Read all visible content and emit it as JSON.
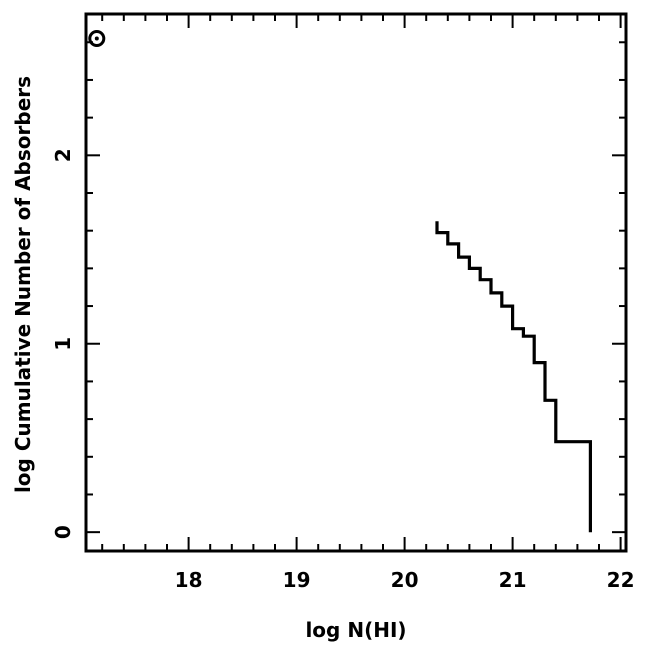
{
  "chart_data": {
    "type": "line",
    "step": true,
    "xlabel": "log N(HI)",
    "ylabel": "log Cumulative Number of Absorbers",
    "xlim": [
      17.05,
      22.05
    ],
    "ylim": [
      -0.1,
      2.75
    ],
    "x_ticks": [
      18,
      19,
      20,
      21,
      22
    ],
    "y_ticks": [
      0,
      1,
      2
    ],
    "series": [
      {
        "x": [
          20.3,
          20.3,
          20.4,
          20.4,
          20.5,
          20.5,
          20.6,
          20.6,
          20.7,
          20.7,
          20.8,
          20.8,
          20.9,
          20.9,
          21.0,
          21.0,
          21.1,
          21.1,
          21.2,
          21.2,
          21.3,
          21.3,
          21.4,
          21.4,
          21.72,
          21.72
        ],
        "y": [
          1.65,
          1.59,
          1.59,
          1.53,
          1.53,
          1.46,
          1.46,
          1.4,
          1.4,
          1.34,
          1.34,
          1.27,
          1.27,
          1.2,
          1.2,
          1.08,
          1.08,
          1.04,
          1.04,
          0.9,
          0.9,
          0.7,
          0.7,
          0.48,
          0.48,
          0.0
        ]
      }
    ],
    "symbol": {
      "name": "sun-symbol",
      "x": 17.15,
      "y": 2.62
    }
  }
}
